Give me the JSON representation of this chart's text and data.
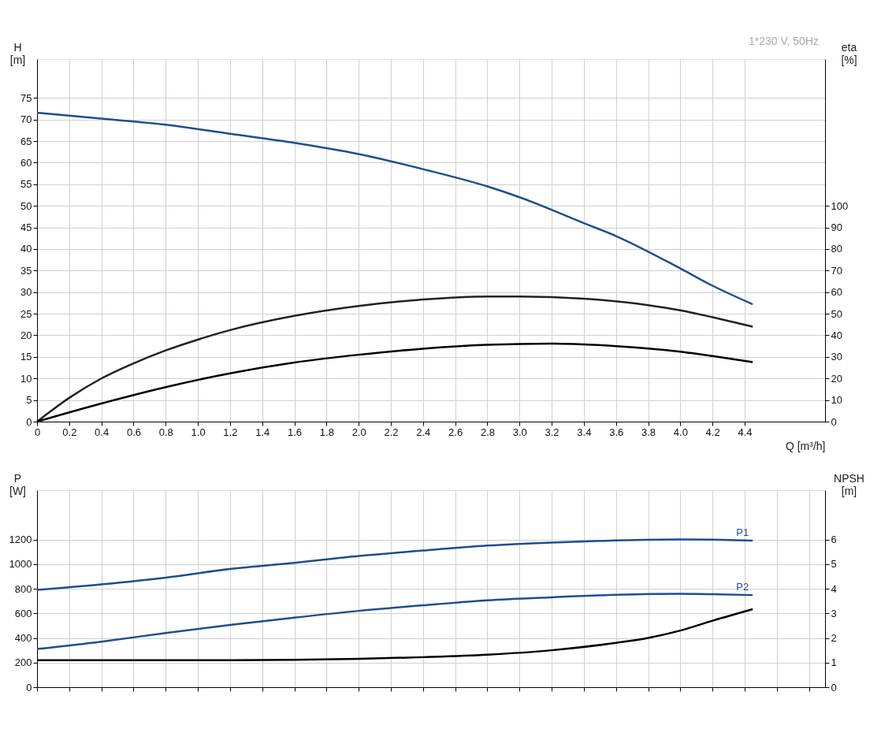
{
  "chart_data": [
    {
      "type": "line",
      "xlabel": "Q [m³/h]",
      "ylabel": "H\n[m]",
      "y2label": "eta\n[%]",
      "annotations": [
        "1*230 V, 50Hz"
      ],
      "xlim": [
        0,
        4.9
      ],
      "xticks": [
        0,
        0.2,
        0.4,
        0.6,
        0.8,
        {
          "value": 1,
          "label": "1.0"
        },
        1.2,
        1.4,
        1.6,
        1.8,
        {
          "value": 2,
          "label": "2.0"
        },
        2.2,
        2.4,
        2.6,
        2.8,
        {
          "value": 3,
          "label": "3.0"
        },
        3.2,
        3.4,
        3.6,
        3.8,
        {
          "value": 4,
          "label": "4.0"
        },
        4.2,
        4.4
      ],
      "ylim": [
        0,
        84
      ],
      "yticks": [
        0,
        5,
        10,
        15,
        20,
        25,
        30,
        35,
        40,
        45,
        50,
        55,
        60,
        65,
        70,
        75
      ],
      "y2lim": [
        0,
        168
      ],
      "y2ticks": [
        0,
        10,
        20,
        30,
        40,
        50,
        60,
        70,
        80,
        90,
        100
      ],
      "grid": true,
      "series": [
        {
          "color": "#1f4e8c",
          "x": [
            0,
            0.4,
            0.8,
            1.2,
            1.6,
            2.0,
            2.4,
            2.8,
            3.0,
            3.4,
            3.6,
            4.0,
            4.2,
            4.45
          ],
          "values": [
            71.6,
            70.2,
            68.8,
            66.7,
            64.6,
            62.0,
            58.5,
            54.5,
            52.0,
            46.0,
            43.0,
            35.5,
            31.5,
            27.2
          ]
        },
        {
          "color": "#222222",
          "axis": "y2",
          "x": [
            0,
            0.2,
            0.4,
            0.6,
            0.8,
            1.0,
            1.2,
            1.6,
            2.0,
            2.4,
            2.8,
            3.0,
            3.4,
            3.8,
            4.0,
            4.2,
            4.45
          ],
          "values": [
            0,
            11,
            20,
            27,
            33,
            38,
            42.4,
            49,
            53.6,
            56.6,
            58,
            58,
            57,
            54,
            51.6,
            48.4,
            44
          ]
        },
        {
          "color": "#000000",
          "axis": "y2",
          "x": [
            0,
            0.4,
            0.8,
            1.2,
            1.6,
            2.0,
            2.4,
            2.8,
            3.2,
            3.6,
            4.0,
            4.2,
            4.45
          ],
          "values": [
            0,
            8.4,
            16,
            22.4,
            27.4,
            31,
            33.8,
            35.6,
            36.2,
            35,
            32.4,
            30.4,
            27.6
          ]
        }
      ]
    },
    {
      "type": "line",
      "ylabel": "P\n[W]",
      "y2label": "NPSH\n[m]",
      "tick_labels": "y",
      "xlim": [
        0,
        4.9
      ],
      "ylim": [
        0,
        1600
      ],
      "yticks": [
        0,
        200,
        400,
        600,
        800,
        1000,
        1200
      ],
      "y2lim": [
        0,
        8
      ],
      "y2ticks": [
        0,
        1,
        2,
        3,
        4,
        5,
        6
      ],
      "grid": true,
      "series": [
        {
          "name": "P1",
          "color": "#1f4e8c",
          "x": [
            0,
            0.4,
            0.8,
            1.2,
            1.6,
            2.0,
            2.4,
            2.8,
            3.2,
            3.6,
            4.0,
            4.2,
            4.45
          ],
          "values": [
            790,
            835,
            890,
            960,
            1010,
            1065,
            1110,
            1150,
            1175,
            1192,
            1200,
            1198,
            1190
          ]
        },
        {
          "name": "P2",
          "color": "#1f4e8c",
          "x": [
            0,
            0.4,
            0.8,
            1.2,
            1.6,
            2.0,
            2.4,
            2.8,
            3.2,
            3.6,
            4.0,
            4.2,
            4.45
          ],
          "values": [
            310,
            370,
            440,
            505,
            565,
            620,
            665,
            705,
            730,
            750,
            758,
            755,
            748
          ]
        },
        {
          "color": "#000000",
          "axis": "y2",
          "x": [
            0,
            1.2,
            2.0,
            2.4,
            2.8,
            3.2,
            3.6,
            3.8,
            4.0,
            4.2,
            4.45
          ],
          "values": [
            1.1,
            1.1,
            1.15,
            1.22,
            1.32,
            1.5,
            1.8,
            2.0,
            2.3,
            2.7,
            3.17
          ]
        }
      ]
    }
  ]
}
